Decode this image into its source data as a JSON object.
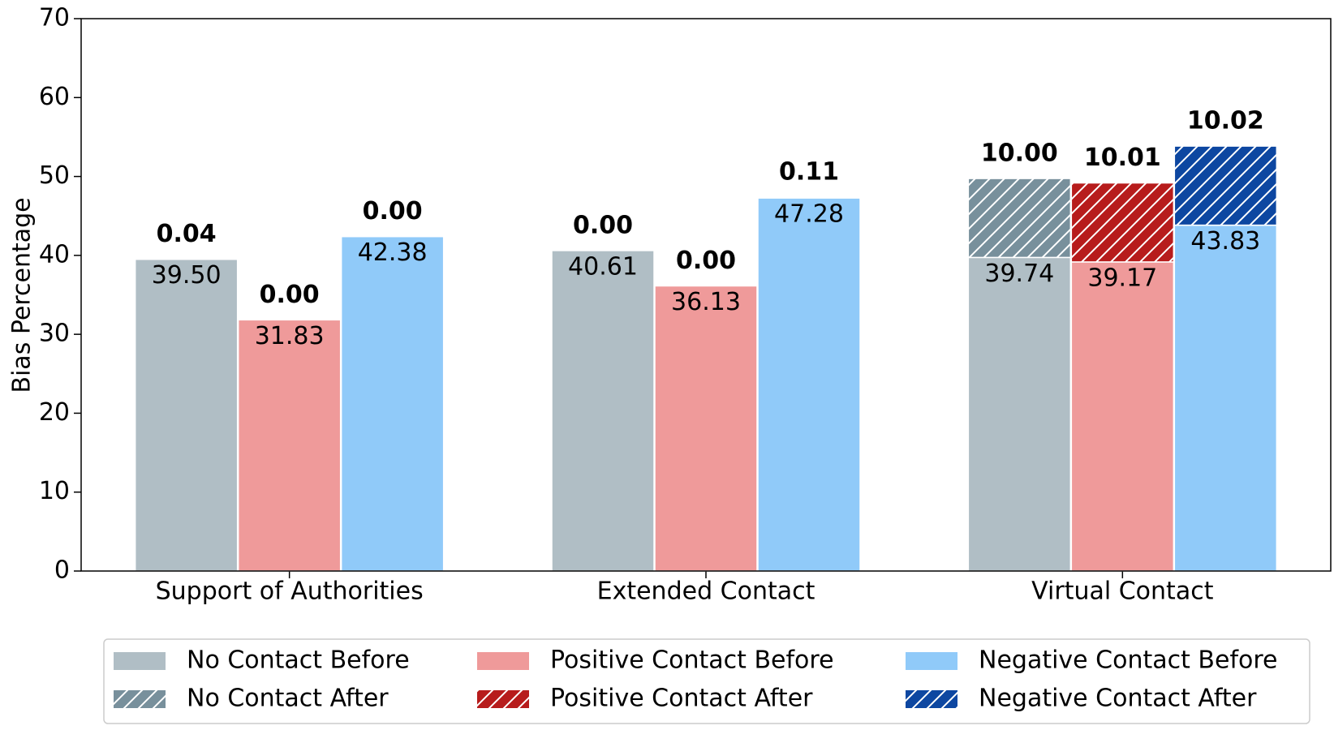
{
  "chart_data": {
    "type": "bar",
    "y_label": "Bias Percentage",
    "categories": [
      "Support of Authorities",
      "Extended Contact",
      "Virtual Contact"
    ],
    "ylim": [
      0,
      70
    ],
    "yticks": [
      0,
      10,
      20,
      30,
      40,
      50,
      60,
      70
    ],
    "series": [
      {
        "name": "No Contact Before",
        "color": "#b0bec5",
        "values": [
          39.5,
          40.61,
          39.74
        ],
        "value_labels": [
          "39.50",
          "40.61",
          "39.74"
        ]
      },
      {
        "name": "Positive Contact Before",
        "color": "#ef9a9a",
        "values": [
          31.83,
          36.13,
          39.17
        ],
        "value_labels": [
          "31.83",
          "36.13",
          "39.17"
        ]
      },
      {
        "name": "Negative Contact Before",
        "color": "#90caf9",
        "values": [
          42.38,
          47.28,
          43.83
        ],
        "value_labels": [
          "42.38",
          "47.28",
          "43.83"
        ]
      },
      {
        "name": "No Contact After",
        "color": "#78909c",
        "hatch": true,
        "values": [
          0.04,
          0,
          10
        ],
        "value_labels": [
          "0.04",
          "0.00",
          "10.00"
        ]
      },
      {
        "name": "Positive Contact After",
        "color": "#b71c1c",
        "hatch": true,
        "values": [
          0,
          0,
          10.01
        ],
        "value_labels": [
          "0.00",
          "0.00",
          "10.01"
        ]
      },
      {
        "name": "Negative Contact After",
        "color": "#0d47a1",
        "hatch": true,
        "values": [
          0,
          0.11,
          10.02
        ],
        "value_labels": [
          "0.00",
          "0.11",
          "10.02"
        ]
      }
    ]
  }
}
